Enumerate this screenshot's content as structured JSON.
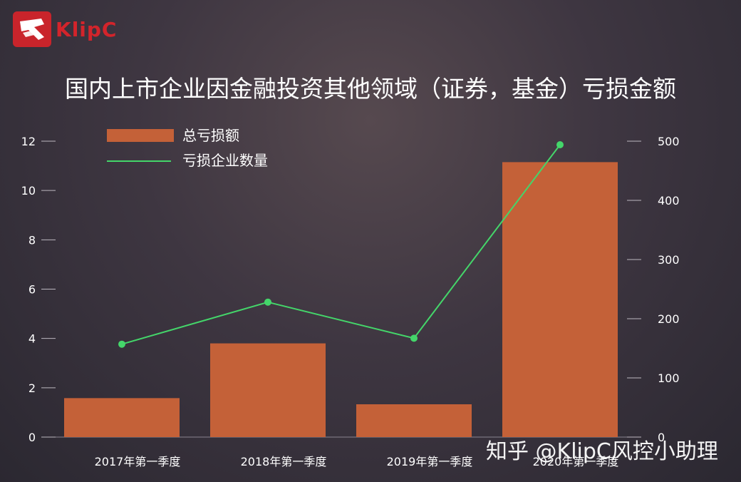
{
  "brand": {
    "logo_text": "KlipC",
    "logo_color": "#d3242b"
  },
  "chart_data": {
    "type": "bar",
    "title": "国内上市企业因金融投资其他领域（证券，基金）亏损金额",
    "categories": [
      "2017年第一季度",
      "2018年第一季度",
      "2019年第一季度",
      "2020年第一季度"
    ],
    "series": [
      {
        "name": "总亏损额",
        "type": "bar",
        "axis": "left",
        "color": "#c46138",
        "values": [
          1.58,
          3.8,
          1.33,
          11.15
        ]
      },
      {
        "name": "亏损企业数量",
        "type": "line",
        "axis": "right",
        "color": "#44d66a",
        "values": [
          157,
          228,
          167,
          494
        ]
      }
    ],
    "y_left": {
      "min": 0,
      "max": 12,
      "ticks": [
        0,
        2,
        4,
        6,
        8,
        10,
        12
      ]
    },
    "y_right": {
      "min": 0,
      "max": 500,
      "ticks": [
        0,
        100,
        200,
        300,
        400,
        500
      ]
    },
    "legend_position": "top-left",
    "grid": false
  },
  "watermark": "知乎 @KlipC风控小助理"
}
